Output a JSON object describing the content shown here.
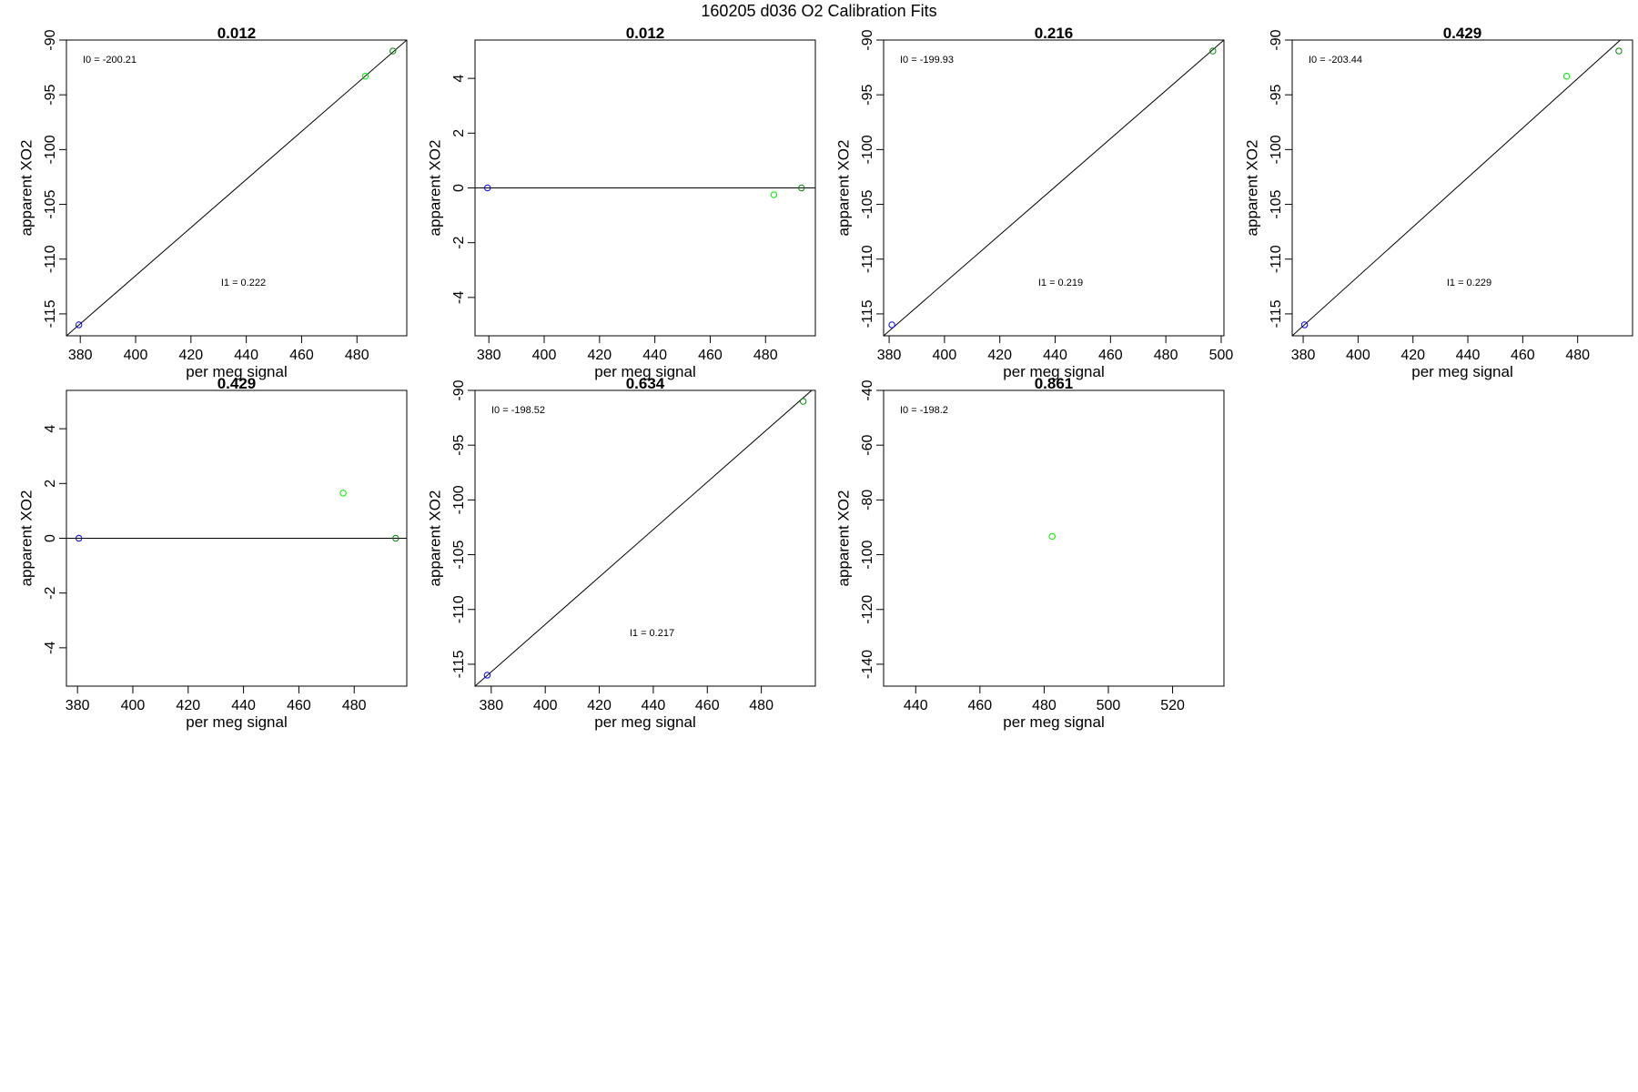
{
  "figure": {
    "title": "160205   d036   O2 Calibration Fits",
    "x_label": "per meg signal",
    "y_label": "apparent XO2"
  },
  "colors": {
    "blue_point": "#0000ff",
    "green_point": "#00ee00",
    "dark_green_point": "#008800",
    "fit_line": "#000000"
  },
  "chart_data": [
    {
      "type": "scatter",
      "title": "0.012",
      "xlabel": "per meg signal",
      "ylabel": "apparent XO2",
      "xlim": [
        375,
        498
      ],
      "ylim": [
        -117,
        -90
      ],
      "x_ticks": [
        380,
        400,
        420,
        440,
        460,
        480
      ],
      "y_ticks": [
        -115,
        -110,
        -105,
        -100,
        -95,
        -90
      ],
      "line": {
        "x1": 375,
        "y1": -117,
        "x2": 498,
        "y2": -90
      },
      "points": [
        {
          "x": 379.5,
          "y": -116,
          "color": "blue"
        },
        {
          "x": 483,
          "y": -93.3,
          "color": "green"
        },
        {
          "x": 493,
          "y": -91,
          "color": "dark-green"
        }
      ],
      "annotations": [
        {
          "text": "I0 =  -200.21",
          "pos": "top-left"
        },
        {
          "text": "I1 =  0.222",
          "pos": "middle"
        }
      ]
    },
    {
      "type": "scatter",
      "title": "0.012",
      "xlabel": "per meg signal",
      "ylabel": "apparent XO2",
      "xlim": [
        375,
        498
      ],
      "ylim": [
        -5.4,
        5.4
      ],
      "x_ticks": [
        380,
        400,
        420,
        440,
        460,
        480
      ],
      "y_ticks": [
        -4,
        -2,
        0,
        2,
        4
      ],
      "line": {
        "x1": 375,
        "y1": 0,
        "x2": 498,
        "y2": 0
      },
      "points": [
        {
          "x": 379.5,
          "y": 0,
          "color": "blue"
        },
        {
          "x": 483,
          "y": -0.25,
          "color": "green"
        },
        {
          "x": 493,
          "y": 0,
          "color": "dark-green"
        }
      ],
      "annotations": []
    },
    {
      "type": "scatter",
      "title": "0.216",
      "xlabel": "per meg signal",
      "ylabel": "apparent XO2",
      "xlim": [
        378,
        501
      ],
      "ylim": [
        -117,
        -90
      ],
      "x_ticks": [
        380,
        400,
        420,
        440,
        460,
        480,
        500
      ],
      "y_ticks": [
        -115,
        -110,
        -105,
        -100,
        -95,
        -90
      ],
      "line": {
        "x1": 378,
        "y1": -117,
        "x2": 501,
        "y2": -90
      },
      "points": [
        {
          "x": 381,
          "y": -116,
          "color": "blue"
        },
        {
          "x": 497,
          "y": -91,
          "color": "dark-green"
        }
      ],
      "annotations": [
        {
          "text": "I0 =  -199.93",
          "pos": "top-left"
        },
        {
          "text": "I1 =  0.219",
          "pos": "middle"
        }
      ]
    },
    {
      "type": "scatter",
      "title": "0.429",
      "xlabel": "per meg signal",
      "ylabel": "apparent XO2",
      "xlim": [
        376,
        500
      ],
      "ylim": [
        -117,
        -90
      ],
      "x_ticks": [
        380,
        400,
        420,
        440,
        460,
        480
      ],
      "y_ticks": [
        -115,
        -110,
        -105,
        -100,
        -95,
        -90
      ],
      "line": {
        "x1": 376,
        "y1": -117,
        "x2": 500,
        "y2": -89
      },
      "points": [
        {
          "x": 380.5,
          "y": -116,
          "color": "blue"
        },
        {
          "x": 476,
          "y": -93.3,
          "color": "green"
        },
        {
          "x": 495,
          "y": -91,
          "color": "dark-green"
        }
      ],
      "annotations": [
        {
          "text": "I0 =  -203.44",
          "pos": "top-left"
        },
        {
          "text": "I1 =  0.229",
          "pos": "middle"
        }
      ]
    },
    {
      "type": "scatter",
      "title": "0.429",
      "xlabel": "per meg signal",
      "ylabel": "apparent XO2",
      "xlim": [
        376,
        499
      ],
      "ylim": [
        -5.4,
        5.4
      ],
      "x_ticks": [
        380,
        400,
        420,
        440,
        460,
        480
      ],
      "y_ticks": [
        -4,
        -2,
        0,
        2,
        4
      ],
      "line": {
        "x1": 376,
        "y1": 0,
        "x2": 499,
        "y2": 0
      },
      "points": [
        {
          "x": 380.5,
          "y": 0,
          "color": "blue"
        },
        {
          "x": 476,
          "y": 1.65,
          "color": "green"
        },
        {
          "x": 495,
          "y": 0,
          "color": "dark-green"
        }
      ],
      "annotations": []
    },
    {
      "type": "scatter",
      "title": "0.634",
      "xlabel": "per meg signal",
      "ylabel": "apparent XO2",
      "xlim": [
        374,
        500
      ],
      "ylim": [
        -117,
        -90
      ],
      "x_ticks": [
        380,
        400,
        420,
        440,
        460,
        480
      ],
      "y_ticks": [
        -115,
        -110,
        -105,
        -100,
        -95,
        -90
      ],
      "line": {
        "x1": 374,
        "y1": -117,
        "x2": 500,
        "y2": -89.7
      },
      "points": [
        {
          "x": 378.5,
          "y": -116,
          "color": "blue"
        },
        {
          "x": 495.5,
          "y": -91,
          "color": "dark-green"
        }
      ],
      "annotations": [
        {
          "text": "I0 =  -198.52",
          "pos": "top-left"
        },
        {
          "text": "I1 =  0.217",
          "pos": "middle"
        }
      ]
    },
    {
      "type": "scatter",
      "title": "0.861",
      "xlabel": "per meg signal",
      "ylabel": "apparent XO2",
      "xlim": [
        430,
        536
      ],
      "ylim": [
        -148,
        -40
      ],
      "x_ticks": [
        440,
        460,
        480,
        500,
        520
      ],
      "y_ticks": [
        -140,
        -120,
        -100,
        -80,
        -60,
        -40
      ],
      "line": null,
      "points": [
        {
          "x": 482.5,
          "y": -93.3,
          "color": "green"
        }
      ],
      "annotations": [
        {
          "text": "I0 =  -198.2",
          "pos": "top-left"
        }
      ]
    }
  ]
}
